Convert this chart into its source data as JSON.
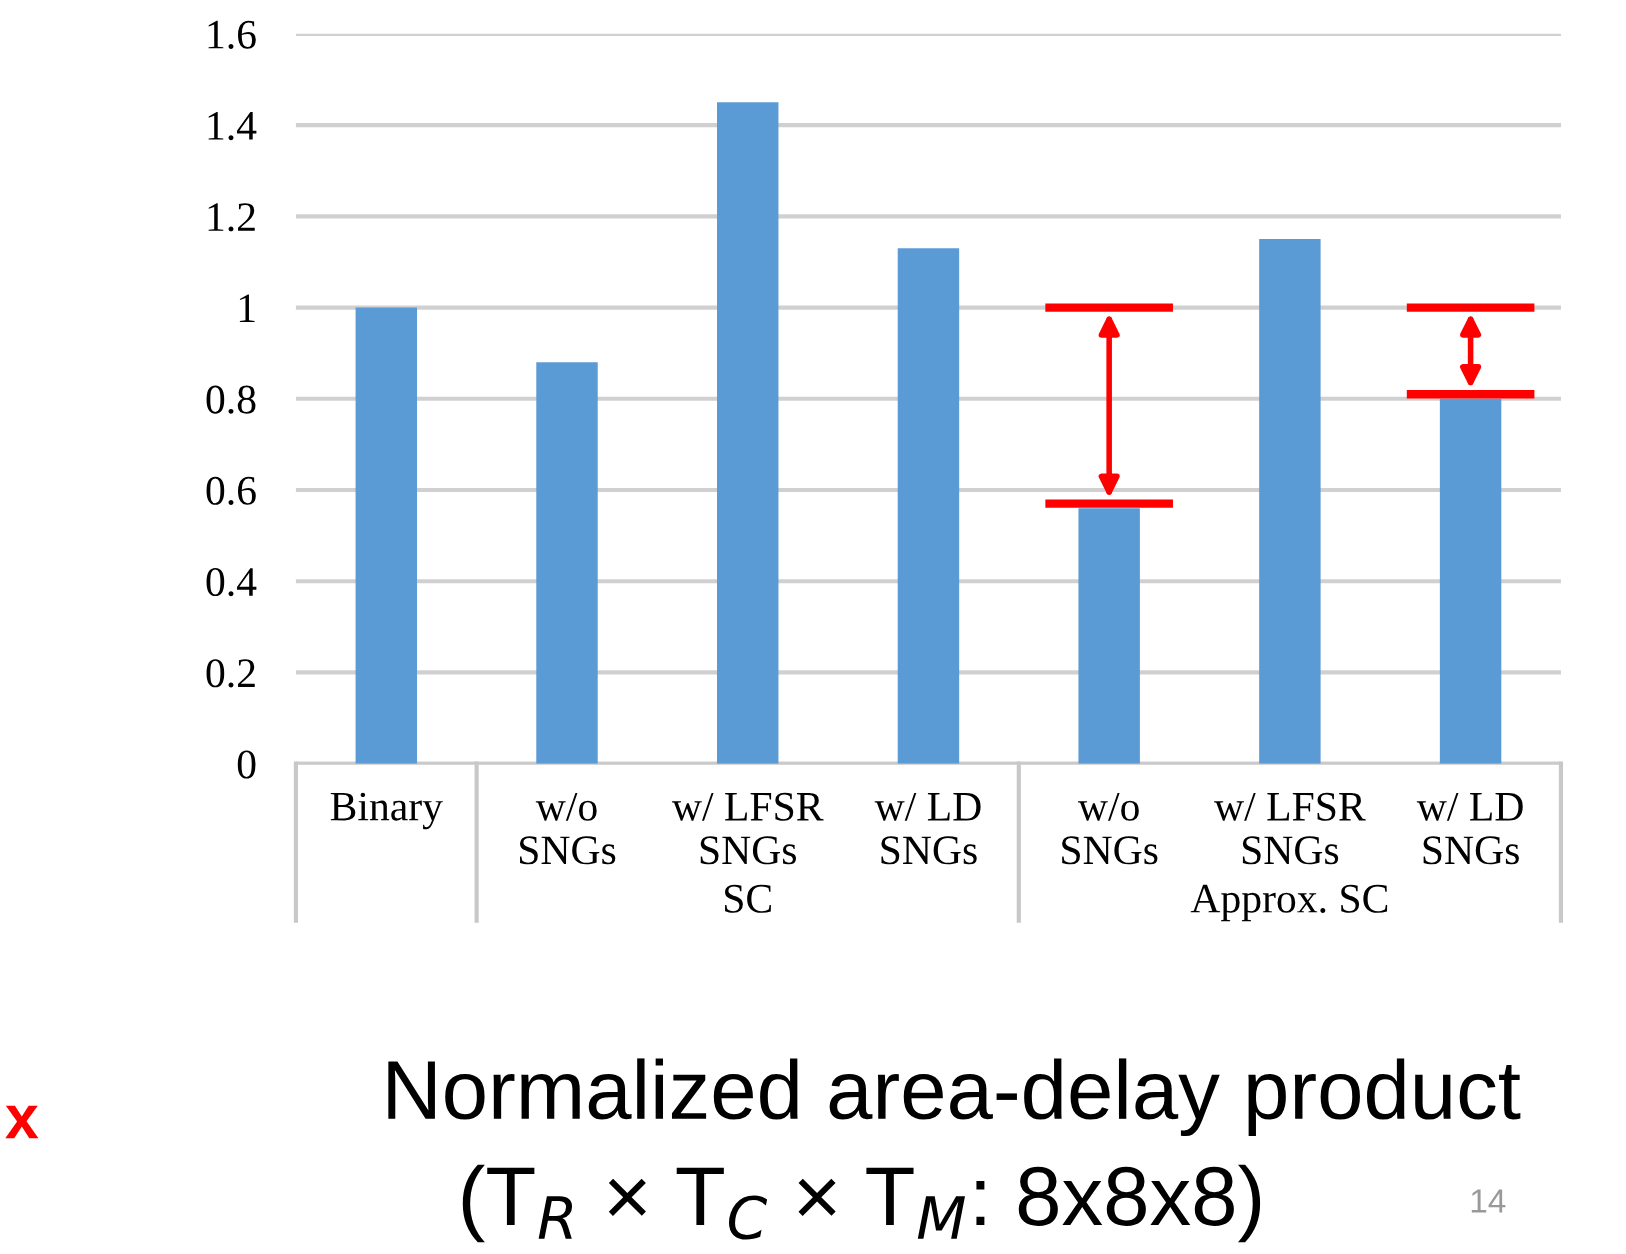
{
  "chart_data": {
    "type": "bar",
    "title": "Normalized area-delay product",
    "subtitle": "(T$_{R}$ × T$_{C}$ × T$_{M}$: 8x8x8)",
    "categories": [
      "Binary",
      "w/o\nSNGs",
      "w/ LFSR\nSNGs",
      "w/ LD\nSNGs",
      "w/o\nSNGs",
      "w/ LFSR\nSNGs",
      "w/ LD\nSNGs"
    ],
    "series": [
      {
        "color": "#5b9bd5",
        "values": [
          1.0,
          0.88,
          1.45,
          1.13,
          0.56,
          1.15,
          0.8
        ]
      }
    ],
    "ylim": [
      0,
      1.6
    ],
    "yticks": [
      0,
      0.2,
      0.4,
      0.6,
      0.8,
      1,
      1.2,
      1.4,
      1.6
    ],
    "grid": "y",
    "legend": false,
    "annotations": [
      "SC",
      "Approx. SC",
      "x",
      "14"
    ]
  }
}
